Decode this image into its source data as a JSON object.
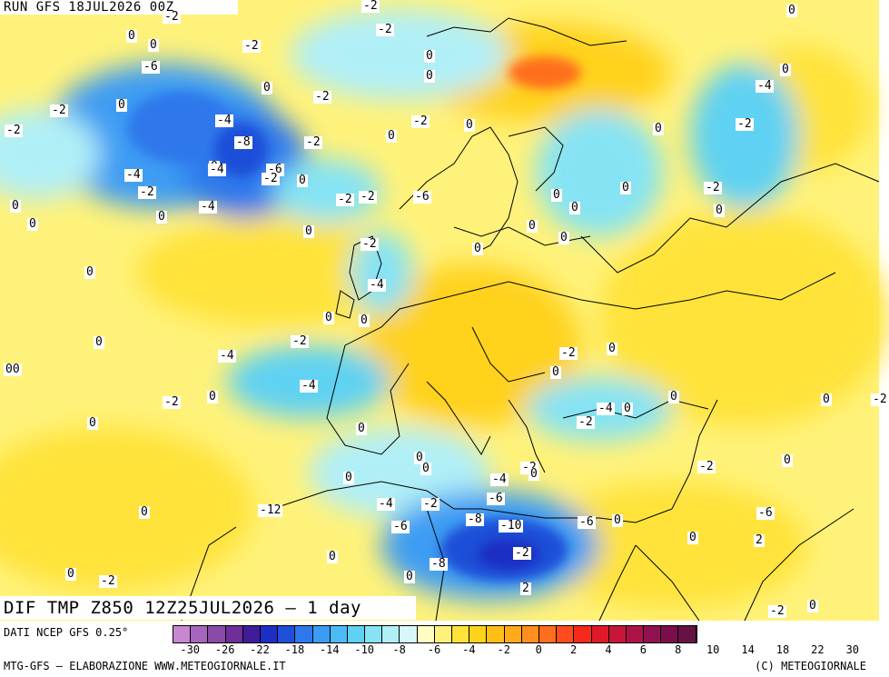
{
  "header": {
    "run_title": "RUN GFS 18JUL2026 00Z",
    "map_title": "DIF TMP Z850 12Z25JUL2026 – 1 day"
  },
  "footer": {
    "source_note": "DATI NCEP GFS 0.25°",
    "credit_left": "MTG-GFS – ELABORAZIONE WWW.METEOGIORNALE.IT",
    "credit_right": "(C) METEOGIORNALE"
  },
  "legend": {
    "colors": [
      "#c987d3",
      "#a665bd",
      "#8a4aa8",
      "#6e2f98",
      "#3e1c9a",
      "#1d2ec4",
      "#1f4fd9",
      "#2f78ec",
      "#3c9cf3",
      "#4cbbf5",
      "#5fd1f3",
      "#85e3f4",
      "#b1eff7",
      "#d7f7fa",
      "#fffdbf",
      "#fff27a",
      "#ffe33a",
      "#ffd21b",
      "#ffbf15",
      "#ffa91b",
      "#ff8f1e",
      "#ff6e1e",
      "#ff4c1e",
      "#f52a1a",
      "#e01929",
      "#c71739",
      "#ad1445",
      "#921150",
      "#7c0d4d",
      "#651343"
    ],
    "tick_labels": [
      "-30",
      "-26",
      "-22",
      "-18",
      "-14",
      "-10",
      "-8",
      "-6",
      "-4",
      "-2",
      "0",
      "2",
      "4",
      "6",
      "8",
      "10",
      "14",
      "18",
      "22",
      "30"
    ]
  },
  "map_labels": [
    "-2",
    "-2",
    "0",
    "-2",
    "0",
    "-2",
    "0",
    "0",
    "-2",
    "0",
    "-6",
    "0",
    "-2",
    "0",
    "-2",
    "0",
    "0",
    "0",
    "-2",
    "0",
    "-4",
    "-4",
    "-2",
    "-2",
    "-4",
    "-8",
    "0",
    "-6",
    "-4",
    "-2",
    "0",
    "0",
    "-4",
    "-2",
    "0",
    "-2",
    "-2",
    "-6",
    "0",
    "0",
    "0",
    "0",
    "-2",
    "-2",
    "0",
    "0",
    "0",
    "0",
    "0",
    "0",
    "-4",
    "0",
    "0",
    "-2",
    "0",
    "-2",
    "00",
    "-4",
    "-4",
    "0",
    "0",
    "-2",
    "0",
    "0",
    "0",
    "-2",
    "0",
    "0",
    "0",
    "-4",
    "-2",
    "0",
    "0",
    "-2",
    "0",
    "-4",
    "0",
    "-2",
    "0",
    "-6",
    "-4",
    "-2",
    "-6",
    "-8",
    "-10",
    "-6",
    "0",
    "0",
    "-12",
    "-6",
    "-2",
    "-8",
    "0",
    "2",
    "-2",
    "0",
    "2",
    "0",
    "0",
    "0",
    "-2"
  ]
}
